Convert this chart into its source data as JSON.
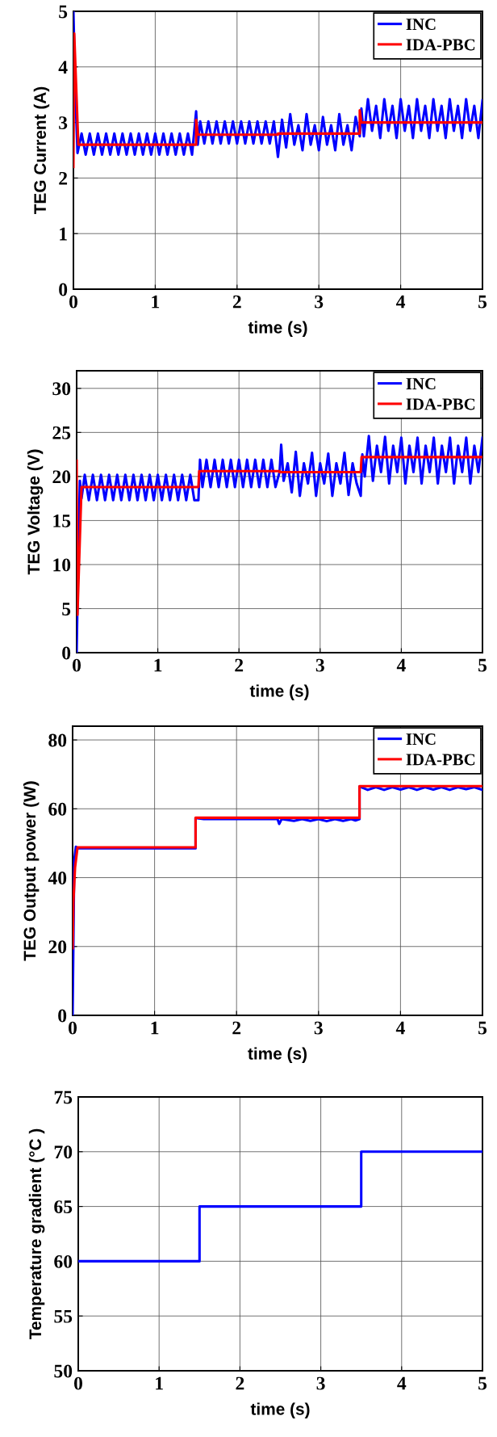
{
  "chart_data": [
    {
      "type": "line",
      "xlabel": "time (s)",
      "ylabel": "TEG Current (A)",
      "xlim": [
        0,
        5
      ],
      "xticks": [
        0,
        1,
        2,
        3,
        4,
        5
      ],
      "ylim": [
        0,
        5
      ],
      "yticks": [
        0,
        1,
        2,
        3,
        4,
        5
      ],
      "grid": true,
      "legend": "top right",
      "marker": "none",
      "line_style": "solid",
      "series": [
        {
          "name": "INC",
          "color": "#0000ff",
          "x": [
            0,
            0.02,
            0.05,
            0.1,
            0.15,
            0.2,
            0.25,
            0.3,
            0.35,
            0.4,
            0.45,
            0.5,
            0.55,
            0.6,
            0.65,
            0.7,
            0.75,
            0.8,
            0.85,
            0.9,
            0.95,
            1.0,
            1.05,
            1.1,
            1.15,
            1.2,
            1.25,
            1.3,
            1.35,
            1.4,
            1.45,
            1.5,
            1.52,
            1.55,
            1.6,
            1.65,
            1.7,
            1.75,
            1.8,
            1.85,
            1.9,
            1.95,
            2.0,
            2.05,
            2.1,
            2.15,
            2.2,
            2.25,
            2.3,
            2.35,
            2.4,
            2.45,
            2.5,
            2.55,
            2.6,
            2.65,
            2.7,
            2.75,
            2.8,
            2.85,
            2.9,
            2.95,
            3.0,
            3.05,
            3.1,
            3.15,
            3.2,
            3.25,
            3.3,
            3.35,
            3.4,
            3.45,
            3.5,
            3.52,
            3.55,
            3.6,
            3.65,
            3.7,
            3.75,
            3.8,
            3.85,
            3.9,
            3.95,
            4.0,
            4.05,
            4.1,
            4.15,
            4.2,
            4.25,
            4.3,
            4.35,
            4.4,
            4.45,
            4.5,
            4.55,
            4.6,
            4.65,
            4.7,
            4.75,
            4.8,
            4.85,
            4.9,
            4.95,
            5.0
          ],
          "values": [
            5.0,
            3.7,
            2.45,
            2.8,
            2.42,
            2.8,
            2.42,
            2.8,
            2.42,
            2.8,
            2.42,
            2.8,
            2.42,
            2.8,
            2.42,
            2.8,
            2.42,
            2.8,
            2.42,
            2.8,
            2.42,
            2.8,
            2.42,
            2.8,
            2.42,
            2.8,
            2.42,
            2.8,
            2.42,
            2.8,
            2.42,
            3.2,
            2.6,
            3.02,
            2.62,
            3.02,
            2.62,
            3.02,
            2.62,
            3.02,
            2.62,
            3.02,
            2.62,
            3.02,
            2.62,
            3.02,
            2.62,
            3.02,
            2.62,
            3.02,
            2.62,
            3.02,
            2.38,
            3.05,
            2.55,
            3.15,
            2.6,
            2.95,
            2.5,
            3.15,
            2.6,
            2.95,
            2.5,
            3.1,
            2.6,
            2.95,
            2.5,
            3.15,
            2.6,
            2.95,
            2.5,
            3.1,
            2.75,
            3.25,
            2.75,
            3.42,
            2.85,
            3.3,
            2.72,
            3.42,
            2.85,
            3.3,
            2.72,
            3.42,
            2.85,
            3.3,
            2.72,
            3.42,
            2.85,
            3.3,
            2.72,
            3.42,
            2.85,
            3.3,
            2.72,
            3.42,
            2.85,
            3.3,
            2.72,
            3.42,
            2.85,
            3.3,
            2.72,
            3.4
          ]
        },
        {
          "name": "IDA-PBC",
          "color": "#ff0000",
          "x": [
            0,
            0.01,
            0.06,
            1.5,
            1.5,
            1.52,
            2.5,
            2.5,
            3.5,
            3.5,
            3.52,
            5
          ],
          "values": [
            2.2,
            4.6,
            2.6,
            2.6,
            3.05,
            2.78,
            2.78,
            2.8,
            2.8,
            3.22,
            3.0,
            3.0
          ]
        }
      ]
    },
    {
      "type": "line",
      "xlabel": "time (s)",
      "ylabel": "TEG Voltage (V)",
      "xlim": [
        0,
        5
      ],
      "xticks": [
        0,
        1,
        2,
        3,
        4,
        5
      ],
      "ylim": [
        0,
        32
      ],
      "yticks": [
        0,
        5,
        10,
        15,
        20,
        25,
        30
      ],
      "grid": true,
      "legend": "top right",
      "marker": "none",
      "line_style": "solid",
      "series": [
        {
          "name": "INC",
          "color": "#0000ff",
          "x": [
            0,
            0.02,
            0.04,
            0.06,
            0.1,
            0.15,
            0.2,
            0.25,
            0.3,
            0.35,
            0.4,
            0.45,
            0.5,
            0.55,
            0.6,
            0.65,
            0.7,
            0.75,
            0.8,
            0.85,
            0.9,
            0.95,
            1.0,
            1.05,
            1.1,
            1.15,
            1.2,
            1.25,
            1.3,
            1.35,
            1.4,
            1.45,
            1.5,
            1.52,
            1.55,
            1.6,
            1.65,
            1.7,
            1.75,
            1.8,
            1.85,
            1.9,
            1.95,
            2.0,
            2.05,
            2.1,
            2.15,
            2.2,
            2.25,
            2.3,
            2.35,
            2.4,
            2.45,
            2.5,
            2.52,
            2.55,
            2.6,
            2.65,
            2.7,
            2.75,
            2.8,
            2.85,
            2.9,
            2.95,
            3.0,
            3.05,
            3.1,
            3.15,
            3.2,
            3.25,
            3.3,
            3.35,
            3.4,
            3.45,
            3.5,
            3.52,
            3.55,
            3.6,
            3.65,
            3.7,
            3.75,
            3.8,
            3.85,
            3.9,
            3.95,
            4.0,
            4.05,
            4.1,
            4.15,
            4.2,
            4.25,
            4.3,
            4.35,
            4.4,
            4.45,
            4.5,
            4.55,
            4.6,
            4.65,
            4.7,
            4.75,
            4.8,
            4.85,
            4.9,
            4.95,
            5.0
          ],
          "values": [
            0,
            11,
            19.5,
            17.5,
            20.2,
            17.3,
            20.2,
            17.3,
            20.2,
            17.3,
            20.2,
            17.3,
            20.2,
            17.3,
            20.2,
            17.3,
            20.2,
            17.3,
            20.2,
            17.3,
            20.2,
            17.3,
            20.2,
            17.3,
            20.2,
            17.3,
            20.2,
            17.3,
            20.2,
            17.3,
            20.2,
            17.3,
            17.3,
            21.9,
            18.8,
            21.9,
            18.8,
            21.9,
            18.8,
            21.9,
            18.8,
            21.9,
            18.8,
            21.9,
            18.8,
            21.9,
            18.8,
            21.9,
            18.8,
            21.9,
            18.8,
            21.9,
            18.8,
            20.5,
            23.6,
            19.5,
            21.5,
            18.2,
            22.8,
            17.8,
            21.5,
            19.2,
            22.7,
            17.8,
            21.5,
            19.2,
            22.6,
            17.8,
            21.5,
            19.2,
            22.7,
            17.9,
            21.5,
            19.2,
            17.8,
            22.5,
            20.0,
            24.6,
            19.5,
            23.5,
            20.5,
            24.5,
            19.2,
            23.5,
            20.5,
            24.4,
            19.2,
            23.5,
            20.5,
            24.4,
            19.2,
            23.5,
            20.5,
            24.4,
            19.2,
            23.5,
            20.5,
            24.4,
            19.2,
            23.5,
            20.5,
            24.4,
            19.2,
            23.5,
            20.5,
            24.4
          ]
        },
        {
          "name": "IDA-PBC",
          "color": "#ff0000",
          "x": [
            0,
            0.01,
            0.06,
            1.5,
            1.51,
            2.5,
            2.5,
            3.5,
            3.51,
            5
          ],
          "values": [
            21.8,
            4.3,
            18.8,
            18.8,
            20.6,
            20.6,
            20.5,
            20.5,
            22.2,
            22.2
          ]
        }
      ]
    },
    {
      "type": "line",
      "xlabel": "time (s)",
      "ylabel": "TEG Output power (W)",
      "xlim": [
        0,
        5
      ],
      "xticks": [
        0,
        1,
        2,
        3,
        4,
        5
      ],
      "ylim": [
        0,
        84
      ],
      "yticks": [
        0,
        20,
        40,
        60,
        80
      ],
      "grid": true,
      "legend": "top right",
      "marker": "none",
      "line_style": "solid",
      "series": [
        {
          "name": "INC",
          "color": "#0000ff",
          "x": [
            0,
            0.02,
            0.04,
            0.06,
            1.5,
            1.5,
            1.6,
            2.5,
            2.52,
            2.55,
            2.7,
            2.8,
            2.9,
            3.0,
            3.1,
            3.2,
            3.3,
            3.4,
            3.45,
            3.5,
            3.5,
            3.6,
            3.7,
            3.8,
            3.9,
            4.0,
            4.1,
            4.2,
            4.3,
            4.4,
            4.5,
            4.6,
            4.7,
            4.8,
            4.9,
            5
          ],
          "values": [
            0,
            45,
            49,
            48.5,
            48.5,
            57.3,
            57,
            57,
            55.6,
            57,
            56.5,
            57,
            56.5,
            57,
            56.4,
            57,
            56.5,
            57,
            56.6,
            57,
            66.5,
            65.5,
            66.3,
            65.5,
            66.3,
            65.6,
            66.3,
            65.5,
            66.3,
            65.6,
            66.3,
            65.5,
            66.3,
            65.7,
            66.3,
            65.5
          ]
        },
        {
          "name": "IDA-PBC",
          "color": "#ff0000",
          "x": [
            0,
            0.01,
            0.03,
            0.06,
            1.5,
            1.5,
            3.5,
            3.5,
            5
          ],
          "values": [
            19.5,
            33,
            43,
            48.8,
            48.8,
            57.4,
            57.4,
            66.6,
            66.6
          ]
        }
      ]
    },
    {
      "type": "line",
      "xlabel": "time (s)",
      "ylabel": "Temperature gradient (°C )",
      "xlim": [
        0,
        5
      ],
      "xticks": [
        0,
        1,
        2,
        3,
        4,
        5
      ],
      "ylim": [
        50,
        75
      ],
      "yticks": [
        50,
        55,
        60,
        65,
        70,
        75
      ],
      "grid": true,
      "marker": "none",
      "line_style": "solid",
      "series": [
        {
          "color": "#0000ff",
          "x": [
            0,
            1.5,
            1.5,
            3.5,
            3.5,
            5
          ],
          "values": [
            60,
            60,
            65,
            65,
            70,
            70
          ]
        }
      ]
    }
  ]
}
